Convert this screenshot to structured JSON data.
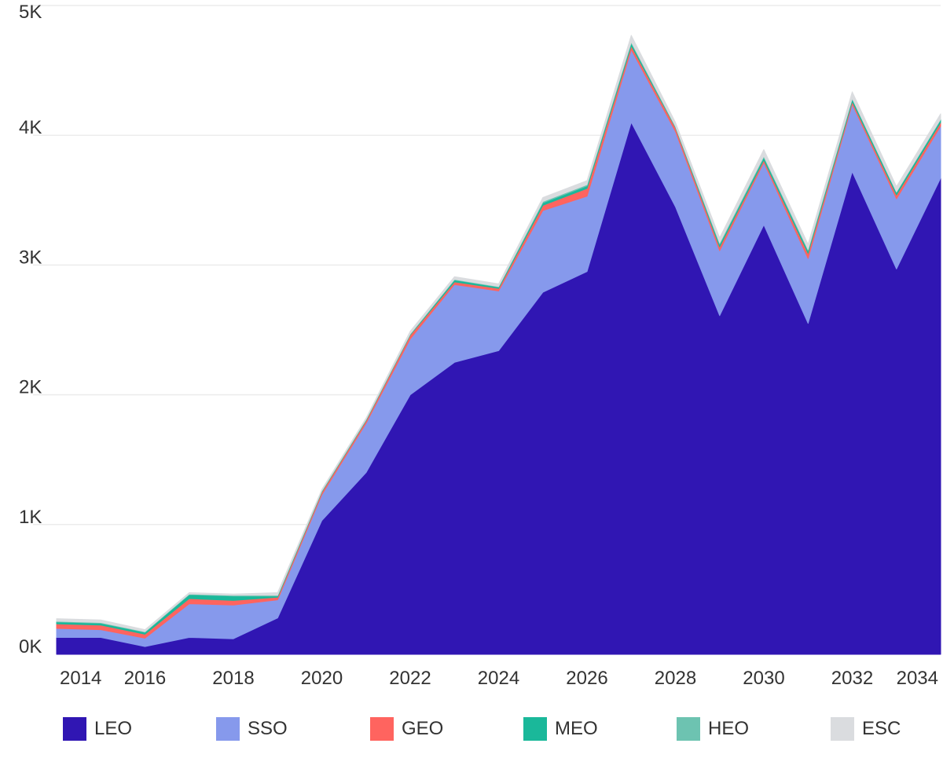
{
  "chart_data": {
    "type": "area",
    "stacked": true,
    "title": "",
    "xlabel": "",
    "ylabel": "",
    "x": [
      2014,
      2015,
      2016,
      2017,
      2018,
      2019,
      2020,
      2021,
      2022,
      2023,
      2024,
      2025,
      2026,
      2027,
      2028,
      2029,
      2030,
      2031,
      2032,
      2033,
      2034
    ],
    "x_tick_labels": [
      "2014",
      "2016",
      "2018",
      "2020",
      "2022",
      "2024",
      "2026",
      "2028",
      "2030",
      "2032",
      "2034"
    ],
    "x_ticks": [
      2014,
      2016,
      2018,
      2020,
      2022,
      2024,
      2026,
      2028,
      2030,
      2032,
      2034
    ],
    "xlim": [
      2014,
      2034
    ],
    "y_tick_labels": [
      "0K",
      "1K",
      "2K",
      "3K",
      "4K",
      "5K"
    ],
    "y_ticks": [
      0,
      1000,
      2000,
      3000,
      4000,
      5000
    ],
    "ylim": [
      0,
      5000
    ],
    "grid": "horizontal",
    "legend_position": "bottom",
    "series": [
      {
        "name": "LEO",
        "color": "#3016B3",
        "values": [
          130,
          130,
          60,
          130,
          120,
          280,
          1030,
          1400,
          2000,
          2250,
          2340,
          2790,
          2950,
          4100,
          3450,
          2610,
          3310,
          2550,
          3720,
          2970,
          3670
        ]
      },
      {
        "name": "SSO",
        "color": "#8699EC",
        "values": [
          70,
          60,
          65,
          260,
          260,
          140,
          200,
          380,
          430,
          600,
          460,
          630,
          580,
          560,
          580,
          500,
          480,
          500,
          520,
          540,
          400
        ]
      },
      {
        "name": "GEO",
        "color": "#FF645F",
        "values": [
          35,
          35,
          30,
          40,
          35,
          20,
          20,
          20,
          30,
          20,
          20,
          40,
          60,
          30,
          30,
          30,
          20,
          40,
          20,
          30,
          30
        ]
      },
      {
        "name": "MEO",
        "color": "#1AB89A",
        "values": [
          15,
          15,
          15,
          30,
          35,
          10,
          5,
          5,
          5,
          15,
          10,
          20,
          20,
          20,
          5,
          20,
          20,
          20,
          20,
          20,
          20
        ]
      },
      {
        "name": "HEO",
        "color": "#6DC3B1",
        "values": [
          5,
          5,
          5,
          5,
          5,
          5,
          5,
          5,
          5,
          5,
          5,
          10,
          10,
          10,
          5,
          10,
          10,
          10,
          5,
          5,
          5
        ]
      },
      {
        "name": "ESC",
        "color": "#DADCDF",
        "values": [
          20,
          20,
          15,
          10,
          10,
          20,
          10,
          10,
          20,
          20,
          20,
          30,
          30,
          50,
          30,
          40,
          50,
          40,
          50,
          40,
          40
        ]
      }
    ]
  }
}
